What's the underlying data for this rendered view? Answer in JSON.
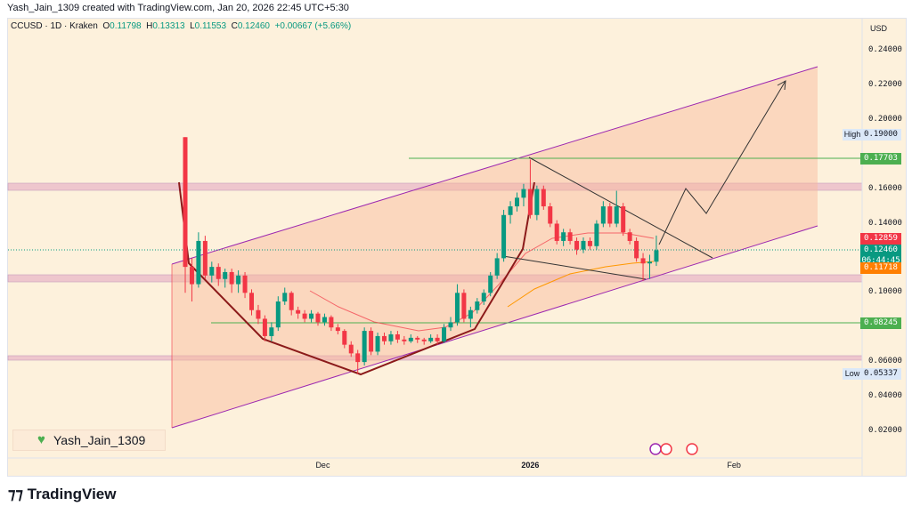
{
  "header": {
    "title": "Yash_Jain_1309 created with TradingView.com, Jan 20, 2026 22:45 UTC+5:30"
  },
  "legend": {
    "symbol": "CCUSD · 1D · Kraken",
    "o_label": "O",
    "o": "0.11798",
    "h_label": "H",
    "h": "0.13313",
    "l_label": "L",
    "l": "0.11553",
    "c_label": "C",
    "c": "0.12460",
    "change": "+0.00667 (+5.66%)"
  },
  "axis": {
    "currency": "USD",
    "ticks": [
      "0.24000",
      "0.22000",
      "0.20000",
      "0.16000",
      "0.14000",
      "0.10000",
      "0.06000",
      "0.04000",
      "0.02000"
    ],
    "tick_values": [
      0.24,
      0.22,
      0.2,
      0.16,
      0.14,
      0.1,
      0.06,
      0.04,
      0.02
    ],
    "x_labels": [
      "Dec",
      "2026",
      "Feb"
    ],
    "x_days": [
      21,
      52,
      83
    ]
  },
  "tags": {
    "high_label": "High",
    "high": "0.19000",
    "level1": "0.17703",
    "ma_red": "0.12859",
    "last": "0.12460",
    "countdown": "06:44:45",
    "ma_orange": "0.11718",
    "level2": "0.08245",
    "low_label": "Low",
    "low": "0.05337"
  },
  "colors": {
    "up": "#089981",
    "down": "#f23645",
    "channel": "#9c27b0",
    "level": "#4caf50"
  },
  "watermark": {
    "text": "Yash_Jain_1309"
  },
  "footer": {
    "brand": "TradingView"
  },
  "chart_data": {
    "type": "candlestick",
    "start": "Nov 10",
    "candles": [
      [
        0.19,
        0.19,
        0.1,
        0.115
      ],
      [
        0.115,
        0.12,
        0.095,
        0.105
      ],
      [
        0.105,
        0.135,
        0.103,
        0.13
      ],
      [
        0.13,
        0.133,
        0.108,
        0.11
      ],
      [
        0.11,
        0.118,
        0.106,
        0.115
      ],
      [
        0.115,
        0.117,
        0.104,
        0.108
      ],
      [
        0.108,
        0.114,
        0.103,
        0.112
      ],
      [
        0.112,
        0.114,
        0.1,
        0.105
      ],
      [
        0.105,
        0.113,
        0.1,
        0.11
      ],
      [
        0.11,
        0.112,
        0.097,
        0.1
      ],
      [
        0.1,
        0.102,
        0.087,
        0.09
      ],
      [
        0.09,
        0.093,
        0.082,
        0.085
      ],
      [
        0.085,
        0.087,
        0.072,
        0.075
      ],
      [
        0.075,
        0.083,
        0.072,
        0.08
      ],
      [
        0.08,
        0.098,
        0.078,
        0.095
      ],
      [
        0.095,
        0.103,
        0.093,
        0.1
      ],
      [
        0.1,
        0.101,
        0.087,
        0.09
      ],
      [
        0.09,
        0.092,
        0.085,
        0.088
      ],
      [
        0.088,
        0.09,
        0.083,
        0.085
      ],
      [
        0.085,
        0.09,
        0.083,
        0.088
      ],
      [
        0.088,
        0.089,
        0.081,
        0.083
      ],
      [
        0.083,
        0.088,
        0.081,
        0.086
      ],
      [
        0.086,
        0.087,
        0.078,
        0.08
      ],
      [
        0.08,
        0.082,
        0.076,
        0.078
      ],
      [
        0.078,
        0.079,
        0.068,
        0.07
      ],
      [
        0.07,
        0.072,
        0.063,
        0.065
      ],
      [
        0.065,
        0.067,
        0.053,
        0.06
      ],
      [
        0.06,
        0.08,
        0.058,
        0.078
      ],
      [
        0.078,
        0.08,
        0.064,
        0.066
      ],
      [
        0.066,
        0.077,
        0.064,
        0.075
      ],
      [
        0.075,
        0.077,
        0.07,
        0.072
      ],
      [
        0.072,
        0.078,
        0.07,
        0.076
      ],
      [
        0.076,
        0.078,
        0.071,
        0.073
      ],
      [
        0.073,
        0.075,
        0.07,
        0.072
      ],
      [
        0.072,
        0.076,
        0.071,
        0.074
      ],
      [
        0.074,
        0.075,
        0.071,
        0.073
      ],
      [
        0.073,
        0.074,
        0.07,
        0.072
      ],
      [
        0.072,
        0.076,
        0.071,
        0.074
      ],
      [
        0.074,
        0.076,
        0.07,
        0.072
      ],
      [
        0.072,
        0.082,
        0.071,
        0.08
      ],
      [
        0.08,
        0.086,
        0.078,
        0.083
      ],
      [
        0.083,
        0.105,
        0.081,
        0.1
      ],
      [
        0.1,
        0.102,
        0.083,
        0.085
      ],
      [
        0.085,
        0.092,
        0.08,
        0.09
      ],
      [
        0.09,
        0.097,
        0.088,
        0.095
      ],
      [
        0.095,
        0.102,
        0.093,
        0.1
      ],
      [
        0.1,
        0.112,
        0.098,
        0.11
      ],
      [
        0.11,
        0.123,
        0.108,
        0.12
      ],
      [
        0.12,
        0.148,
        0.118,
        0.145
      ],
      [
        0.145,
        0.153,
        0.14,
        0.15
      ],
      [
        0.15,
        0.158,
        0.147,
        0.155
      ],
      [
        0.155,
        0.163,
        0.15,
        0.16
      ],
      [
        0.16,
        0.177,
        0.143,
        0.145
      ],
      [
        0.145,
        0.162,
        0.142,
        0.16
      ],
      [
        0.16,
        0.162,
        0.148,
        0.15
      ],
      [
        0.15,
        0.152,
        0.138,
        0.14
      ],
      [
        0.14,
        0.142,
        0.128,
        0.13
      ],
      [
        0.13,
        0.137,
        0.127,
        0.135
      ],
      [
        0.135,
        0.137,
        0.128,
        0.13
      ],
      [
        0.13,
        0.132,
        0.122,
        0.125
      ],
      [
        0.125,
        0.132,
        0.123,
        0.13
      ],
      [
        0.13,
        0.132,
        0.125,
        0.127
      ],
      [
        0.127,
        0.142,
        0.125,
        0.14
      ],
      [
        0.14,
        0.153,
        0.138,
        0.15
      ],
      [
        0.15,
        0.152,
        0.138,
        0.14
      ],
      [
        0.14,
        0.159,
        0.138,
        0.15
      ],
      [
        0.15,
        0.152,
        0.133,
        0.135
      ],
      [
        0.135,
        0.137,
        0.128,
        0.13
      ],
      [
        0.13,
        0.132,
        0.118,
        0.12
      ],
      [
        0.12,
        0.123,
        0.107,
        0.117
      ],
      [
        0.117,
        0.122,
        0.108,
        0.118
      ],
      [
        0.118,
        0.13313,
        0.11553,
        0.1246
      ]
    ]
  }
}
